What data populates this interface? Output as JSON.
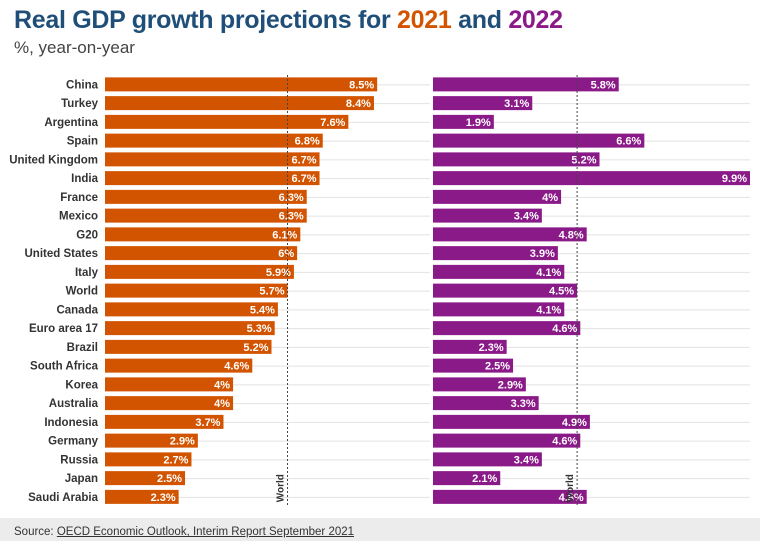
{
  "title": {
    "part1": "Real GDP growth projections for ",
    "year1": "2021",
    "part2": " and ",
    "year2": "2022"
  },
  "subtitle": "%, year-on-year",
  "footer": {
    "prefix": "Source: ",
    "link": "OECD Economic Outlook, Interim Report September 2021"
  },
  "colors": {
    "title": "#1f4e79",
    "year2021": "#d35400",
    "year2022": "#8b1a89"
  },
  "chart_data": {
    "type": "bar",
    "orientation": "horizontal",
    "categories": [
      "China",
      "Turkey",
      "Argentina",
      "Spain",
      "United Kingdom",
      "India",
      "France",
      "Mexico",
      "G20",
      "United States",
      "Italy",
      "World",
      "Canada",
      "Euro area 17",
      "Brazil",
      "South Africa",
      "Korea",
      "Australia",
      "Indonesia",
      "Germany",
      "Russia",
      "Japan",
      "Saudi Arabia"
    ],
    "series": [
      {
        "name": "2021",
        "values": [
          8.5,
          8.4,
          7.6,
          6.8,
          6.7,
          6.7,
          6.3,
          6.3,
          6.1,
          6,
          5.9,
          5.7,
          5.4,
          5.3,
          5.2,
          4.6,
          4,
          4,
          3.7,
          2.9,
          2.7,
          2.5,
          2.3
        ],
        "labels": [
          "8.5%",
          "8.4%",
          "7.6%",
          "6.8%",
          "6.7%",
          "6.7%",
          "6.3%",
          "6.3%",
          "6.1%",
          "6%",
          "5.9%",
          "5.7%",
          "5.4%",
          "5.3%",
          "5.2%",
          "4.6%",
          "4%",
          "4%",
          "3.7%",
          "2.9%",
          "2.7%",
          "2.5%",
          "2.3%"
        ],
        "reference_value": 5.7,
        "reference_label": "World"
      },
      {
        "name": "2022",
        "values": [
          5.8,
          3.1,
          1.9,
          6.6,
          5.2,
          9.9,
          4,
          3.4,
          4.8,
          3.9,
          4.1,
          4.5,
          4.1,
          4.6,
          2.3,
          2.5,
          2.9,
          3.3,
          4.9,
          4.6,
          3.4,
          2.1,
          4.8
        ],
        "labels": [
          "5.8%",
          "3.1%",
          "1.9%",
          "6.6%",
          "5.2%",
          "9.9%",
          "4%",
          "3.4%",
          "4.8%",
          "3.9%",
          "4.1%",
          "4.5%",
          "4.1%",
          "4.6%",
          "2.3%",
          "2.5%",
          "2.9%",
          "3.3%",
          "4.9%",
          "4.6%",
          "3.4%",
          "2.1%",
          "4.8%"
        ],
        "reference_value": 4.5,
        "reference_label": "World"
      }
    ],
    "xlim": [
      0,
      9.9
    ]
  }
}
